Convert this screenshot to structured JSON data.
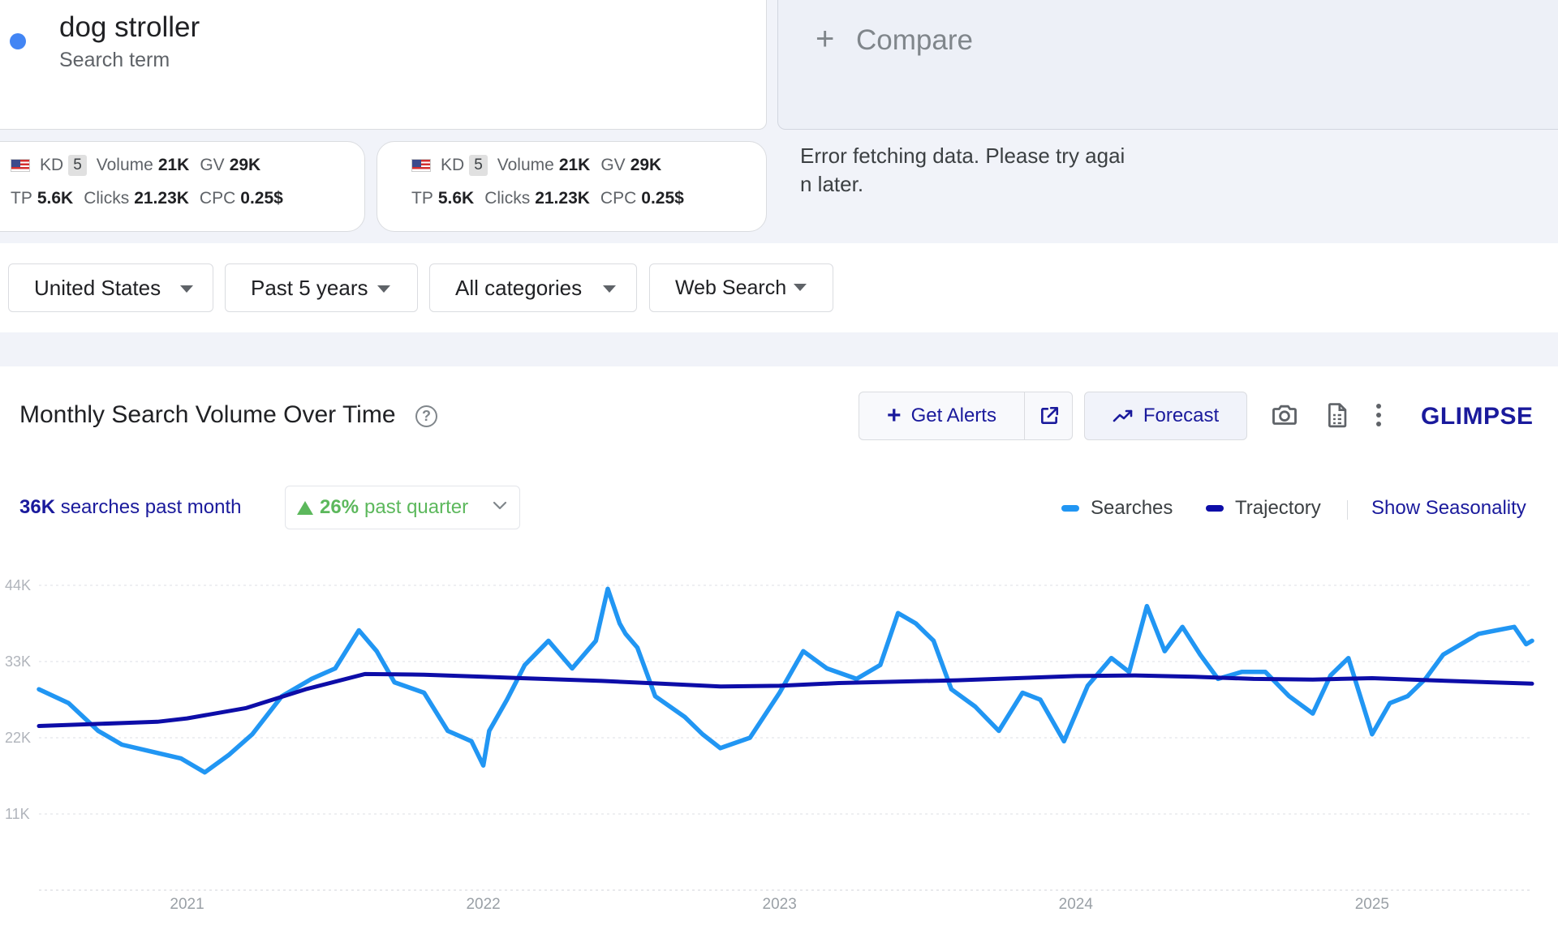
{
  "search_term": {
    "name": "dog stroller",
    "type": "Search term",
    "dot_color": "#4285f4"
  },
  "compare": {
    "label": "Compare"
  },
  "metric_cards": [
    {
      "kd_label": "KD",
      "kd": "5",
      "volume_label": "Volume",
      "volume": "21K",
      "gv_label": "GV",
      "gv": "29K",
      "tp_label": "TP",
      "tp": "5.6K",
      "clicks_label": "Clicks",
      "clicks": "21.23K",
      "cpc_label": "CPC",
      "cpc": "0.25$"
    },
    {
      "kd_label": "KD",
      "kd": "5",
      "volume_label": "Volume",
      "volume": "21K",
      "gv_label": "GV",
      "gv": "29K",
      "tp_label": "TP",
      "tp": "5.6K",
      "clicks_label": "Clicks",
      "clicks": "21.23K",
      "cpc_label": "CPC",
      "cpc": "0.25$"
    }
  ],
  "error": {
    "line1": "Error fetching data. Please try agai",
    "line2": "n later."
  },
  "filters": {
    "country": "United States",
    "range": "Past 5 years",
    "category": "All categories",
    "source": "Web Search"
  },
  "panel": {
    "title": "Monthly Search Volume Over Time",
    "help": "?",
    "get_alerts": "Get Alerts",
    "forecast": "Forecast",
    "brand": "GLIMPSE",
    "summary_value": "36K",
    "summary_text": "searches past month",
    "trend_value": "26%",
    "trend_text": "past quarter",
    "show_seasonality": "Show Seasonality"
  },
  "icons": {
    "plus": "plus-icon",
    "flag": "us-flag-icon",
    "external": "external-link-icon",
    "forecast": "trend-up-icon",
    "camera": "camera-icon",
    "document": "document-icon",
    "more": "more-vert-icon"
  },
  "colors": {
    "searches": "#2196f3",
    "trajectory": "#0d0da8",
    "accent": "#1a1a9c",
    "positive": "#5cb85c"
  },
  "chart_data": {
    "type": "line",
    "x_unit": "year",
    "xlim": [
      2020.5,
      2025.54
    ],
    "ylim": [
      0,
      44000
    ],
    "y_ticks": [
      {
        "value": 44000,
        "label": "44K"
      },
      {
        "value": 33000,
        "label": "33K"
      },
      {
        "value": 22000,
        "label": "22K"
      },
      {
        "value": 11000,
        "label": "11K"
      }
    ],
    "x_ticks": [
      {
        "value": 2021,
        "label": "2021"
      },
      {
        "value": 2022,
        "label": "2022"
      },
      {
        "value": 2023,
        "label": "2023"
      },
      {
        "value": 2024,
        "label": "2024"
      },
      {
        "value": 2025,
        "label": "2025"
      }
    ],
    "grid": true,
    "legend_position": "top-right",
    "series": [
      {
        "name": "Searches",
        "x": [
          2020.5,
          2020.6,
          2020.7,
          2020.78,
          2020.88,
          2020.98,
          2021.06,
          2021.14,
          2021.22,
          2021.32,
          2021.42,
          2021.5,
          2021.58,
          2021.64,
          2021.7,
          2021.8,
          2021.88,
          2021.96,
          2022.0,
          2022.02,
          2022.08,
          2022.14,
          2022.22,
          2022.3,
          2022.38,
          2022.42,
          2022.46,
          2022.48,
          2022.52,
          2022.58,
          2022.68,
          2022.74,
          2022.8,
          2022.9,
          2023.0,
          2023.08,
          2023.16,
          2023.26,
          2023.34,
          2023.4,
          2023.46,
          2023.52,
          2023.58,
          2023.66,
          2023.74,
          2023.82,
          2023.88,
          2023.96,
          2024.04,
          2024.12,
          2024.18,
          2024.24,
          2024.3,
          2024.36,
          2024.42,
          2024.48,
          2024.56,
          2024.64,
          2024.72,
          2024.8,
          2024.86,
          2024.92,
          2025.0,
          2025.06,
          2025.12,
          2025.18,
          2025.24,
          2025.3,
          2025.36,
          2025.42,
          2025.48,
          2025.52,
          2025.54
        ],
        "values": [
          29000,
          27000,
          23000,
          21000,
          20000,
          19000,
          17000,
          19500,
          22500,
          28000,
          30500,
          32000,
          37500,
          34500,
          30000,
          28500,
          23000,
          21500,
          18000,
          23000,
          27500,
          32500,
          36000,
          32000,
          36000,
          43500,
          38500,
          37000,
          35000,
          28000,
          25000,
          22500,
          20500,
          22000,
          28500,
          34500,
          32000,
          30500,
          32500,
          40000,
          38500,
          36000,
          29000,
          26500,
          23000,
          28500,
          27500,
          21500,
          29500,
          33500,
          31500,
          41000,
          34500,
          38000,
          34000,
          30500,
          31500,
          31500,
          28000,
          25500,
          31000,
          33500,
          22500,
          27000,
          28000,
          30500,
          34000,
          35500,
          37000,
          37500,
          38000,
          35500,
          36000
        ]
      },
      {
        "name": "Trajectory",
        "x": [
          2020.5,
          2020.7,
          2020.9,
          2021.0,
          2021.2,
          2021.4,
          2021.6,
          2021.8,
          2022.0,
          2022.2,
          2022.4,
          2022.6,
          2022.8,
          2023.0,
          2023.2,
          2023.4,
          2023.6,
          2023.8,
          2024.0,
          2024.2,
          2024.4,
          2024.6,
          2024.8,
          2025.0,
          2025.2,
          2025.4,
          2025.54
        ],
        "values": [
          23700,
          24000,
          24300,
          24800,
          26300,
          29000,
          31200,
          31100,
          30800,
          30500,
          30200,
          29800,
          29400,
          29500,
          29900,
          30100,
          30300,
          30600,
          30900,
          31000,
          30800,
          30500,
          30400,
          30600,
          30300,
          30000,
          29800
        ]
      }
    ]
  }
}
